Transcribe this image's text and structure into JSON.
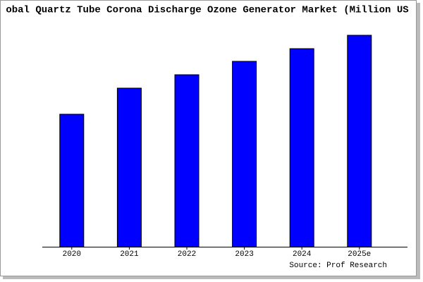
{
  "chart_data": {
    "type": "bar",
    "title": "obal Quartz Tube Corona Discharge Ozone Generator Market (Million US",
    "categories": [
      "2020",
      "2021",
      "2022",
      "2023",
      "2024",
      "2025e"
    ],
    "values": [
      188,
      225,
      244,
      263,
      281,
      300
    ],
    "color": "#0000ff",
    "ylim": [
      0,
      300
    ],
    "source": "Source: Prof Research"
  }
}
